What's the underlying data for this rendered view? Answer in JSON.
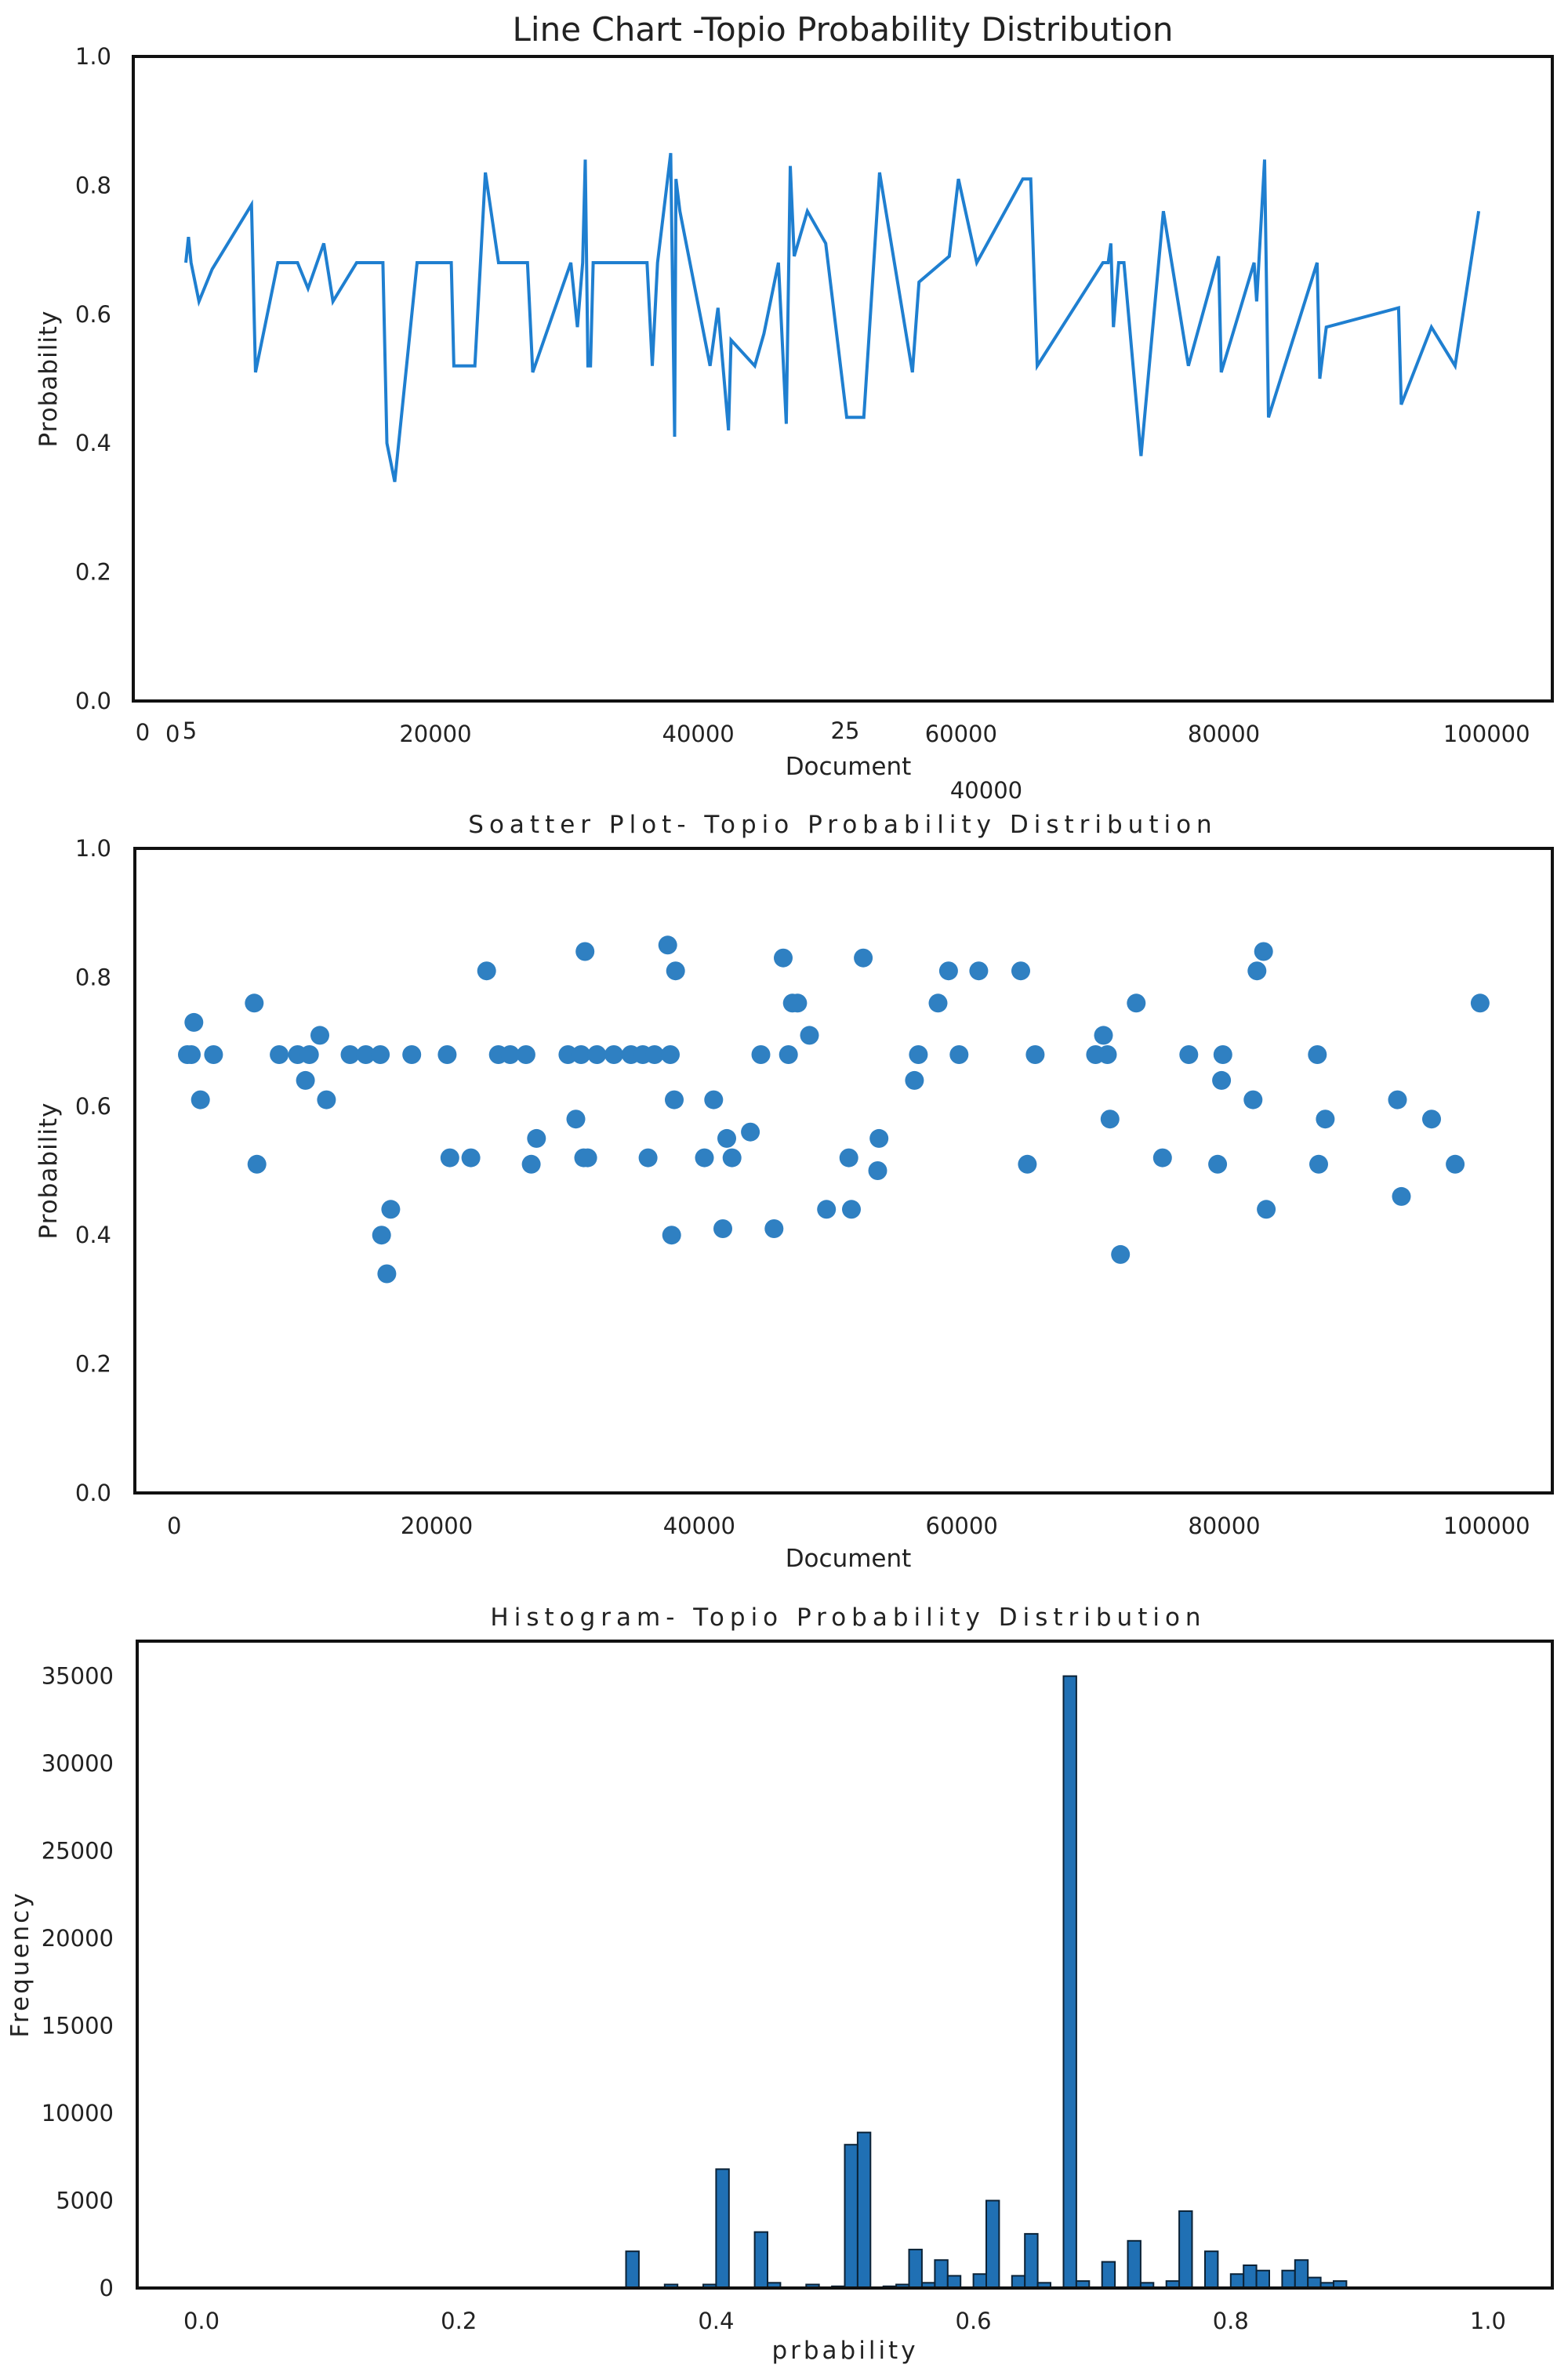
{
  "colors": {
    "line": "#1f7fd0",
    "scatter": "#2f80c2",
    "bar": "#2070b4",
    "bar_edge": "#0b2236",
    "axis": "#111111",
    "text": "#222222"
  },
  "chart_data": [
    {
      "type": "line",
      "title": "Line Chart -Topio Probability Distribution",
      "xlabel": "Document",
      "ylabel": "Probability",
      "ylim": [
        0,
        1
      ],
      "xlim": [
        -3000,
        105000
      ],
      "grid": false,
      "x_ticks": [
        "0",
        "20000",
        "40000",
        "60000",
        "80000",
        "100000"
      ],
      "y_ticks": [
        "0.0",
        "0.2",
        "0.4",
        "0.6",
        "0.8",
        "1.0"
      ],
      "extra_x_labels": [
        "0",
        "5",
        "25",
        "40000"
      ],
      "x": [
        1000,
        1200,
        1400,
        2000,
        3000,
        6000,
        6300,
        8000,
        9500,
        10300,
        11500,
        12200,
        14000,
        16000,
        16300,
        16900,
        18600,
        21200,
        21400,
        23000,
        23800,
        24800,
        27000,
        27400,
        30300,
        30800,
        31200,
        31400,
        31600,
        31800,
        32000,
        32500,
        36100,
        36500,
        36900,
        37900,
        38200,
        38300,
        38600,
        40900,
        41500,
        42300,
        42500,
        44300,
        45000,
        46100,
        46700,
        47000,
        47300,
        48300,
        49700,
        51300,
        52600,
        53800,
        56300,
        56800,
        59100,
        59800,
        61200,
        64700,
        65300,
        65800,
        70800,
        71200,
        71400,
        71600,
        72000,
        72400,
        73700,
        75400,
        77300,
        79600,
        79800,
        82300,
        82500,
        83100,
        83400,
        87100,
        87300,
        87800,
        93300,
        93500,
        95800,
        97600,
        99400
      ],
      "y": [
        0.68,
        0.72,
        0.68,
        0.62,
        0.67,
        0.77,
        0.51,
        0.68,
        0.68,
        0.64,
        0.71,
        0.62,
        0.68,
        0.68,
        0.4,
        0.34,
        0.68,
        0.68,
        0.52,
        0.52,
        0.82,
        0.68,
        0.68,
        0.51,
        0.68,
        0.58,
        0.68,
        0.84,
        0.52,
        0.52,
        0.68,
        0.68,
        0.68,
        0.52,
        0.68,
        0.85,
        0.41,
        0.81,
        0.76,
        0.52,
        0.61,
        0.42,
        0.56,
        0.52,
        0.57,
        0.68,
        0.43,
        0.83,
        0.69,
        0.76,
        0.71,
        0.44,
        0.44,
        0.82,
        0.51,
        0.65,
        0.69,
        0.81,
        0.68,
        0.81,
        0.81,
        0.52,
        0.68,
        0.68,
        0.71,
        0.58,
        0.68,
        0.68,
        0.38,
        0.76,
        0.52,
        0.69,
        0.51,
        0.68,
        0.62,
        0.84,
        0.44,
        0.68,
        0.5,
        0.58,
        0.61,
        0.46,
        0.58,
        0.52,
        0.76
      ]
    },
    {
      "type": "scatter",
      "title": "Soatter Plot- Topio Probability Distribution",
      "xlabel": "Document",
      "ylabel": "Probability",
      "ylim": [
        0,
        1
      ],
      "xlim": [
        -3000,
        105000
      ],
      "grid": false,
      "x_ticks": [
        "0",
        "20000",
        "40000",
        "60000",
        "80000",
        "100000"
      ],
      "y_ticks": [
        "0.0",
        "0.2",
        "0.4",
        "0.6",
        "0.8",
        "1.0"
      ],
      "x": [
        1000,
        1300,
        1500,
        2000,
        3000,
        6100,
        6300,
        8000,
        9400,
        10000,
        10300,
        11100,
        11600,
        13400,
        14600,
        15700,
        15800,
        16200,
        16500,
        18100,
        20800,
        21000,
        22600,
        23800,
        24700,
        25600,
        26800,
        27200,
        27600,
        30000,
        30600,
        31000,
        31200,
        31300,
        31500,
        32200,
        33500,
        34800,
        35700,
        36100,
        36600,
        37600,
        37800,
        37900,
        38100,
        38200,
        40400,
        41100,
        41800,
        42100,
        42500,
        43900,
        44700,
        45700,
        46400,
        46800,
        47100,
        47500,
        48400,
        49700,
        51400,
        51600,
        52500,
        53600,
        53700,
        56400,
        56700,
        58200,
        59000,
        59800,
        61300,
        64500,
        65000,
        65600,
        70200,
        70800,
        71100,
        71300,
        72100,
        73300,
        75300,
        77300,
        79500,
        79800,
        79900,
        82200,
        82500,
        83000,
        83200,
        87100,
        87200,
        87700,
        93200,
        93500,
        95800,
        97600,
        99500
      ],
      "y": [
        0.68,
        0.68,
        0.73,
        0.61,
        0.68,
        0.76,
        0.51,
        0.68,
        0.68,
        0.64,
        0.68,
        0.71,
        0.61,
        0.68,
        0.68,
        0.68,
        0.4,
        0.34,
        0.44,
        0.68,
        0.68,
        0.52,
        0.52,
        0.81,
        0.68,
        0.68,
        0.68,
        0.51,
        0.55,
        0.68,
        0.58,
        0.68,
        0.52,
        0.84,
        0.52,
        0.68,
        0.68,
        0.68,
        0.68,
        0.52,
        0.68,
        0.85,
        0.68,
        0.4,
        0.61,
        0.81,
        0.52,
        0.61,
        0.41,
        0.55,
        0.52,
        0.56,
        0.68,
        0.41,
        0.83,
        0.68,
        0.76,
        0.76,
        0.71,
        0.44,
        0.52,
        0.44,
        0.83,
        0.5,
        0.55,
        0.64,
        0.68,
        0.76,
        0.81,
        0.68,
        0.81,
        0.81,
        0.51,
        0.68,
        0.68,
        0.71,
        0.68,
        0.58,
        0.37,
        0.76,
        0.52,
        0.68,
        0.51,
        0.64,
        0.68,
        0.61,
        0.81,
        0.84,
        0.44,
        0.68,
        0.51,
        0.58,
        0.61,
        0.46,
        0.58,
        0.51,
        0.76
      ]
    },
    {
      "type": "bar",
      "title": "Histogram- Topio Probability Distribution",
      "xlabel": "prbability",
      "ylabel": "Frequency",
      "xlim": [
        -0.05,
        1.05
      ],
      "ylim": [
        0,
        37000
      ],
      "grid": false,
      "x_ticks": [
        "0.0",
        "0.2",
        "0.4",
        "0.6",
        "0.8",
        "1.0"
      ],
      "y_ticks": [
        "0",
        "5000",
        "10000",
        "15000",
        "20000",
        "25000",
        "30000",
        "35000"
      ],
      "bin_width": 0.01,
      "bins": [
        0.335,
        0.365,
        0.375,
        0.395,
        0.405,
        0.425,
        0.435,
        0.445,
        0.475,
        0.495,
        0.505,
        0.515,
        0.525,
        0.535,
        0.545,
        0.555,
        0.565,
        0.575,
        0.585,
        0.595,
        0.605,
        0.615,
        0.625,
        0.635,
        0.645,
        0.655,
        0.665,
        0.675,
        0.685,
        0.695,
        0.705,
        0.715,
        0.725,
        0.735,
        0.745,
        0.755,
        0.765,
        0.775,
        0.785,
        0.795,
        0.805,
        0.815,
        0.825,
        0.835,
        0.845,
        0.855,
        0.865,
        0.875,
        0.885
      ],
      "values": [
        2100,
        200,
        0,
        200,
        6800,
        0,
        3200,
        300,
        200,
        100,
        8200,
        8900,
        0,
        100,
        200,
        2200,
        300,
        1600,
        700,
        0,
        800,
        5000,
        0,
        700,
        3100,
        300,
        0,
        35000,
        400,
        0,
        1500,
        0,
        2700,
        300,
        0,
        400,
        4400,
        0,
        2100,
        0,
        800,
        1300,
        1000,
        0,
        1000,
        1600,
        600,
        300,
        400
      ]
    }
  ]
}
